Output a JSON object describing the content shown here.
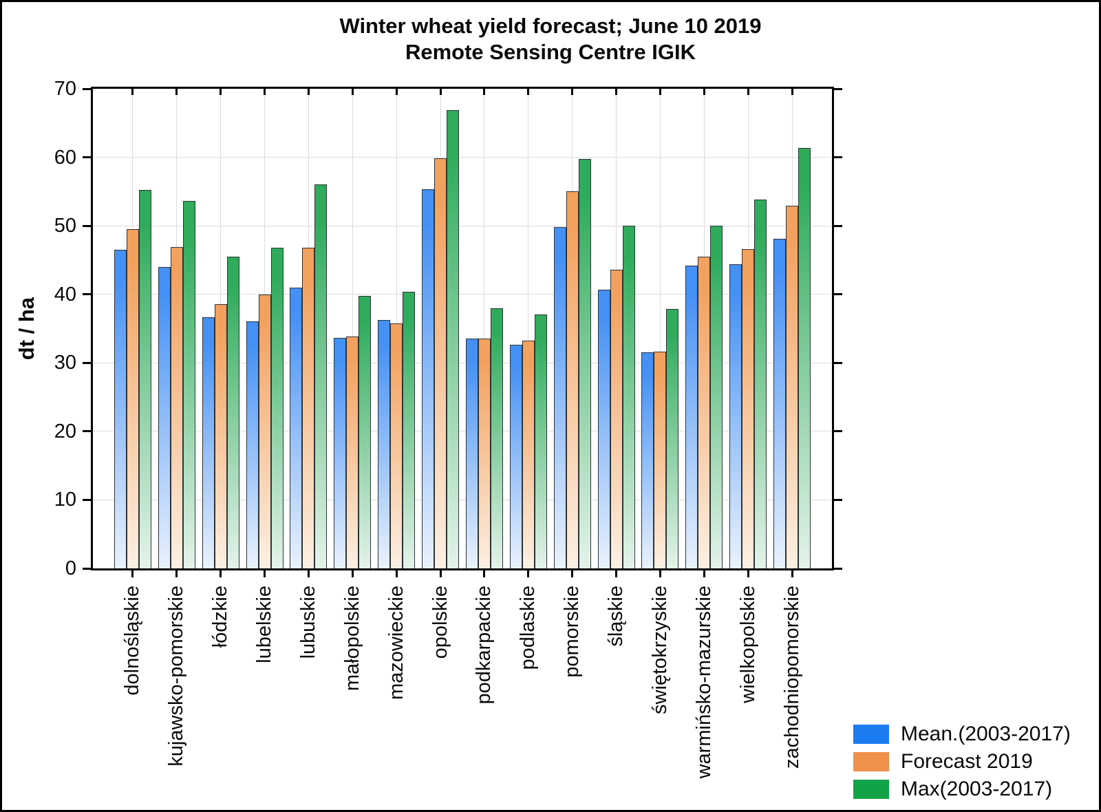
{
  "chart_data": {
    "type": "bar",
    "title": "Winter wheat yield forecast; June 10 2019",
    "subtitle": "Remote Sensing Centre IGIK",
    "ylabel": "dt / ha",
    "ylim": [
      0,
      70
    ],
    "yticks": [
      0,
      10,
      20,
      30,
      40,
      50,
      60,
      70
    ],
    "grid": true,
    "legend_position": "bottom-right",
    "categories": [
      "dolnośląskie",
      "kujawsko-pomorskie",
      "łódzkie",
      "lubelskie",
      "lubuskie",
      "małopolskie",
      "mazowieckie",
      "opolskie",
      "podkarpackie",
      "podlaskie",
      "pomorskie",
      "śląskie",
      "świętokrzyskie",
      "warmińsko-mazurskie",
      "wielkopolskie",
      "zachodniopomorskie"
    ],
    "series": [
      {
        "name": "Mean.(2003-2017)",
        "legend_color": "#1C7CF2",
        "bar_top_color": "#4590F4",
        "bar_bottom_color": "#EAF2FD",
        "values": [
          46.5,
          44.0,
          36.7,
          36.1,
          41.0,
          33.6,
          36.3,
          55.3,
          33.5,
          32.6,
          49.8,
          40.7,
          31.5,
          44.2,
          44.4,
          48.1
        ]
      },
      {
        "name": "Forecast 2019",
        "legend_color": "#F0914B",
        "bar_top_color": "#F2A15E",
        "bar_bottom_color": "#FCF0E3",
        "values": [
          49.5,
          46.9,
          38.6,
          40.0,
          46.8,
          33.8,
          35.8,
          59.9,
          33.5,
          33.2,
          55.0,
          43.6,
          31.6,
          45.5,
          46.6,
          52.9
        ]
      },
      {
        "name": "Max(2003-2017)",
        "legend_color": "#12A348",
        "bar_top_color": "#2FAB5B",
        "bar_bottom_color": "#E4F3E9",
        "values": [
          55.2,
          53.6,
          45.5,
          46.8,
          56.0,
          39.8,
          40.4,
          66.9,
          38.0,
          37.1,
          59.8,
          50.0,
          37.9,
          50.0,
          53.8,
          61.4
        ]
      }
    ],
    "colors": {
      "frame": "#000000",
      "gridline": "#DBDBDB",
      "bar_outline": "#2E3338",
      "text": "#0A0A0A"
    }
  }
}
